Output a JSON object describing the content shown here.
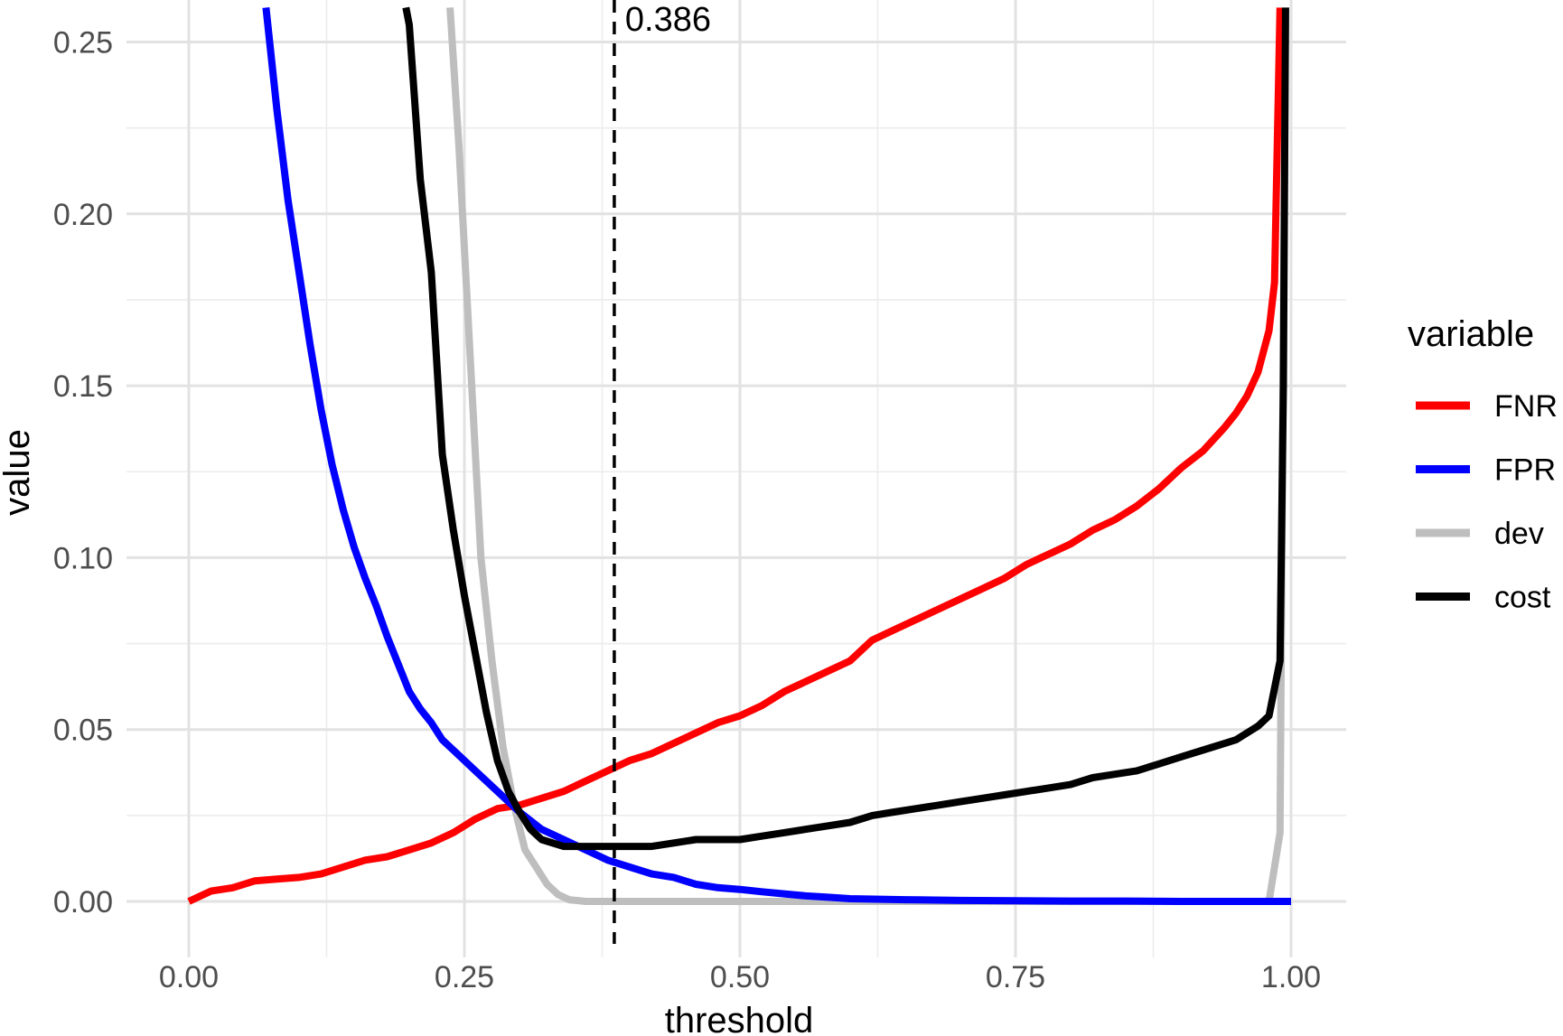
{
  "chart_data": {
    "type": "line",
    "title": "",
    "xlabel": "threshold",
    "ylabel": "value",
    "xlim": [
      0.0,
      1.0
    ],
    "ylim": [
      0.0,
      0.25
    ],
    "x_ticks": [
      "0.00",
      "0.25",
      "0.50",
      "0.75",
      "1.00"
    ],
    "y_ticks": [
      "0.00",
      "0.05",
      "0.10",
      "0.15",
      "0.20",
      "0.25"
    ],
    "grid": true,
    "legend": {
      "title": "variable",
      "placement": "right",
      "entries": [
        "FNR",
        "FPR",
        "dev",
        "cost"
      ]
    },
    "annotations": [
      {
        "type": "vline",
        "x": 0.386,
        "style": "dashed",
        "label": "0.386"
      }
    ],
    "series": [
      {
        "name": "FNR",
        "color": "#ff0000",
        "x": [
          0.0,
          0.02,
          0.04,
          0.06,
          0.08,
          0.1,
          0.12,
          0.14,
          0.16,
          0.18,
          0.2,
          0.22,
          0.24,
          0.26,
          0.28,
          0.3,
          0.32,
          0.34,
          0.36,
          0.38,
          0.4,
          0.42,
          0.44,
          0.46,
          0.48,
          0.5,
          0.52,
          0.54,
          0.56,
          0.58,
          0.6,
          0.62,
          0.64,
          0.66,
          0.68,
          0.7,
          0.72,
          0.74,
          0.76,
          0.78,
          0.8,
          0.82,
          0.84,
          0.86,
          0.88,
          0.9,
          0.92,
          0.94,
          0.95,
          0.96,
          0.97,
          0.98,
          0.985,
          0.99
        ],
        "y": [
          0.0,
          0.003,
          0.004,
          0.006,
          0.0065,
          0.007,
          0.008,
          0.01,
          0.012,
          0.013,
          0.015,
          0.017,
          0.02,
          0.024,
          0.027,
          0.028,
          0.03,
          0.032,
          0.035,
          0.038,
          0.041,
          0.043,
          0.046,
          0.049,
          0.052,
          0.054,
          0.057,
          0.061,
          0.064,
          0.067,
          0.07,
          0.076,
          0.079,
          0.082,
          0.085,
          0.088,
          0.091,
          0.094,
          0.098,
          0.101,
          0.104,
          0.108,
          0.111,
          0.115,
          0.12,
          0.126,
          0.131,
          0.138,
          0.142,
          0.147,
          0.154,
          0.166,
          0.18,
          0.26
        ]
      },
      {
        "name": "FPR",
        "color": "#0000ff",
        "x": [
          0.07,
          0.08,
          0.09,
          0.1,
          0.11,
          0.12,
          0.13,
          0.14,
          0.15,
          0.16,
          0.17,
          0.18,
          0.19,
          0.2,
          0.21,
          0.22,
          0.23,
          0.24,
          0.26,
          0.28,
          0.3,
          0.32,
          0.34,
          0.36,
          0.38,
          0.4,
          0.42,
          0.44,
          0.46,
          0.48,
          0.5,
          0.52,
          0.54,
          0.56,
          0.58,
          0.6,
          0.65,
          0.7,
          0.75,
          0.8,
          0.85,
          0.9,
          0.95,
          0.98,
          1.0
        ],
        "y": [
          0.26,
          0.23,
          0.204,
          0.183,
          0.162,
          0.143,
          0.127,
          0.114,
          0.103,
          0.094,
          0.086,
          0.077,
          0.069,
          0.061,
          0.056,
          0.052,
          0.047,
          0.044,
          0.038,
          0.032,
          0.026,
          0.021,
          0.018,
          0.015,
          0.012,
          0.01,
          0.008,
          0.007,
          0.005,
          0.004,
          0.0035,
          0.0028,
          0.0022,
          0.0016,
          0.0012,
          0.0008,
          0.0005,
          0.0003,
          0.0002,
          0.0001,
          0.0001,
          0.0,
          0.0,
          0.0,
          0.0
        ]
      },
      {
        "name": "dev",
        "color": "#bebebe",
        "x": [
          0.237,
          0.245,
          0.255,
          0.265,
          0.275,
          0.285,
          0.295,
          0.305,
          0.315,
          0.325,
          0.335,
          0.345,
          0.36,
          0.4,
          0.5,
          0.6,
          0.7,
          0.8,
          0.9,
          0.96,
          0.98,
          0.99,
          0.995
        ],
        "y": [
          0.26,
          0.22,
          0.16,
          0.1,
          0.07,
          0.045,
          0.028,
          0.015,
          0.01,
          0.005,
          0.002,
          0.0005,
          0.0,
          0.0,
          0.0,
          0.0,
          0.0,
          0.0,
          0.0,
          0.0,
          0.0,
          0.02,
          0.26
        ]
      },
      {
        "name": "cost",
        "color": "#000000",
        "x": [
          0.197,
          0.2,
          0.21,
          0.22,
          0.23,
          0.24,
          0.25,
          0.26,
          0.27,
          0.28,
          0.29,
          0.3,
          0.31,
          0.32,
          0.34,
          0.36,
          0.38,
          0.4,
          0.42,
          0.44,
          0.46,
          0.48,
          0.5,
          0.52,
          0.54,
          0.56,
          0.58,
          0.6,
          0.62,
          0.64,
          0.66,
          0.68,
          0.7,
          0.72,
          0.74,
          0.76,
          0.78,
          0.8,
          0.82,
          0.84,
          0.86,
          0.88,
          0.9,
          0.92,
          0.94,
          0.95,
          0.96,
          0.97,
          0.98,
          0.99,
          0.993,
          0.995
        ],
        "y": [
          0.26,
          0.255,
          0.21,
          0.183,
          0.13,
          0.108,
          0.089,
          0.072,
          0.055,
          0.041,
          0.032,
          0.026,
          0.021,
          0.018,
          0.016,
          0.016,
          0.016,
          0.016,
          0.016,
          0.017,
          0.018,
          0.018,
          0.018,
          0.019,
          0.02,
          0.021,
          0.022,
          0.023,
          0.025,
          0.026,
          0.027,
          0.028,
          0.029,
          0.03,
          0.031,
          0.032,
          0.033,
          0.034,
          0.036,
          0.037,
          0.038,
          0.04,
          0.042,
          0.044,
          0.046,
          0.047,
          0.049,
          0.051,
          0.054,
          0.07,
          0.15,
          0.26
        ]
      }
    ]
  }
}
